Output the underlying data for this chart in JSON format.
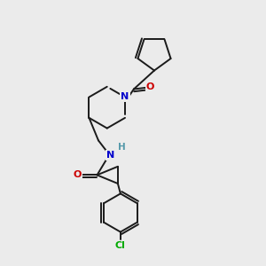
{
  "bg": "#ebebeb",
  "bond_color": "#1a1a1a",
  "N_color": "#0000cc",
  "O_color": "#cc0000",
  "Cl_color": "#00aa00",
  "H_color": "#5599aa",
  "lw": 1.4,
  "figsize": [
    3.0,
    3.0
  ],
  "dpi": 100,
  "xlim": [
    0,
    10
  ],
  "ylim": [
    0,
    10
  ]
}
